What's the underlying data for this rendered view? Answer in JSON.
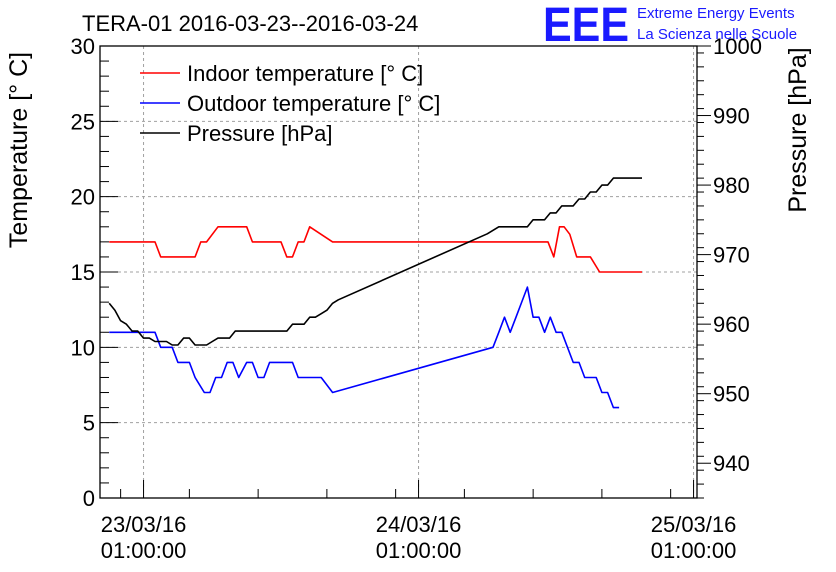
{
  "chart_data": {
    "type": "line",
    "title": "TERA-01 2016-03-23--2016-03-24",
    "ylabel_left": "Temperature [° C]",
    "ylabel_right": "Pressure [hPa]",
    "xlabel": "",
    "x_unit": "hours since 23/03/16 01:00:00",
    "xlim": [
      -3.8,
      48.3
    ],
    "ylim_left": [
      0,
      30
    ],
    "ylim_right": [
      935,
      1000
    ],
    "yticks_left": [
      0,
      5,
      10,
      15,
      20,
      25,
      30
    ],
    "yticks_right": [
      940,
      950,
      960,
      970,
      980,
      990,
      1000
    ],
    "xticks": [
      {
        "x": 0,
        "date": "23/03/16",
        "time": "01:00:00"
      },
      {
        "x": 24,
        "date": "24/03/16",
        "time": "01:00:00"
      },
      {
        "x": 48,
        "date": "25/03/16",
        "time": "01:00:00"
      }
    ],
    "grid": true,
    "legend_position": "top-left",
    "series": [
      {
        "name": "Indoor temperature [° C]",
        "axis": "left",
        "color": "#ff0000",
        "points": [
          [
            -3,
            17
          ],
          [
            1,
            17
          ],
          [
            1.5,
            16
          ],
          [
            4.5,
            16
          ],
          [
            5,
            17
          ],
          [
            5.5,
            17
          ],
          [
            6.5,
            18
          ],
          [
            9,
            18
          ],
          [
            9.5,
            17
          ],
          [
            12,
            17
          ],
          [
            12.5,
            16
          ],
          [
            13,
            16
          ],
          [
            13.5,
            17
          ],
          [
            14,
            17
          ],
          [
            14.5,
            18
          ],
          [
            16.5,
            17
          ],
          [
            31,
            17
          ],
          [
            35.3,
            17
          ],
          [
            35.8,
            16
          ],
          [
            36.3,
            18
          ],
          [
            36.7,
            18
          ],
          [
            37.2,
            17.5
          ],
          [
            37.8,
            16
          ],
          [
            39,
            16
          ],
          [
            39.8,
            15
          ],
          [
            43.5,
            15
          ]
        ]
      },
      {
        "name": "Outdoor temperature [° C]",
        "axis": "left",
        "color": "#0000ff",
        "points": [
          [
            -3,
            11
          ],
          [
            1,
            11
          ],
          [
            1.5,
            10
          ],
          [
            2.5,
            10
          ],
          [
            3,
            9
          ],
          [
            4,
            9
          ],
          [
            4.5,
            8
          ],
          [
            5.3,
            7
          ],
          [
            5.8,
            7
          ],
          [
            6.3,
            8
          ],
          [
            6.8,
            8
          ],
          [
            7.3,
            9
          ],
          [
            7.8,
            9
          ],
          [
            8.3,
            8
          ],
          [
            9,
            9
          ],
          [
            9.5,
            9
          ],
          [
            10,
            8
          ],
          [
            10.5,
            8
          ],
          [
            11,
            9
          ],
          [
            13,
            9
          ],
          [
            13.5,
            8
          ],
          [
            15.5,
            8
          ],
          [
            16.5,
            7
          ],
          [
            30.5,
            10
          ],
          [
            31,
            11
          ],
          [
            31.5,
            12
          ],
          [
            32,
            11
          ],
          [
            32.5,
            12
          ],
          [
            33,
            13
          ],
          [
            33.5,
            14
          ],
          [
            34,
            12
          ],
          [
            34.5,
            12
          ],
          [
            35,
            11
          ],
          [
            35.5,
            12
          ],
          [
            36,
            11
          ],
          [
            36.5,
            11
          ],
          [
            37.5,
            9
          ],
          [
            38,
            9
          ],
          [
            38.5,
            8
          ],
          [
            39.5,
            8
          ],
          [
            40,
            7
          ],
          [
            40.5,
            7
          ],
          [
            41,
            6
          ],
          [
            41.5,
            6
          ]
        ]
      },
      {
        "name": "Pressure [hPa]",
        "axis": "right",
        "color": "#000000",
        "points": [
          [
            -3,
            963
          ],
          [
            -2.5,
            962
          ],
          [
            -2,
            960.5
          ],
          [
            -1.5,
            960
          ],
          [
            -1,
            959
          ],
          [
            -0.5,
            959
          ],
          [
            0,
            958
          ],
          [
            0.5,
            958
          ],
          [
            1,
            957.5
          ],
          [
            2,
            957.5
          ],
          [
            2.5,
            957
          ],
          [
            3,
            957
          ],
          [
            3.5,
            958
          ],
          [
            4,
            958
          ],
          [
            4.5,
            957
          ],
          [
            5,
            957
          ],
          [
            5.5,
            957
          ],
          [
            6,
            957.5
          ],
          [
            6.5,
            958
          ],
          [
            7,
            958
          ],
          [
            7.5,
            958
          ],
          [
            8,
            959
          ],
          [
            9,
            959
          ],
          [
            10,
            959
          ],
          [
            11,
            959
          ],
          [
            12,
            959
          ],
          [
            12.5,
            959
          ],
          [
            13,
            960
          ],
          [
            14,
            960
          ],
          [
            14.5,
            961
          ],
          [
            15,
            961
          ],
          [
            15.5,
            961.5
          ],
          [
            16,
            962
          ],
          [
            16.5,
            963
          ],
          [
            17,
            963.5
          ],
          [
            30,
            973
          ],
          [
            31,
            974
          ],
          [
            32,
            974
          ],
          [
            33,
            974
          ],
          [
            33.5,
            974
          ],
          [
            34,
            975
          ],
          [
            35,
            975
          ],
          [
            35.5,
            976
          ],
          [
            36,
            976
          ],
          [
            36.5,
            977
          ],
          [
            37,
            977
          ],
          [
            37.5,
            977
          ],
          [
            38,
            978
          ],
          [
            38.5,
            978
          ],
          [
            39,
            979
          ],
          [
            39.5,
            979
          ],
          [
            40,
            980
          ],
          [
            40.5,
            980
          ],
          [
            41,
            981
          ],
          [
            41.5,
            981
          ],
          [
            43.5,
            981
          ]
        ]
      }
    ]
  },
  "logo": {
    "text": "EEE",
    "line1": "Extreme Energy Events",
    "line2": "La Scienza nelle Scuole"
  }
}
